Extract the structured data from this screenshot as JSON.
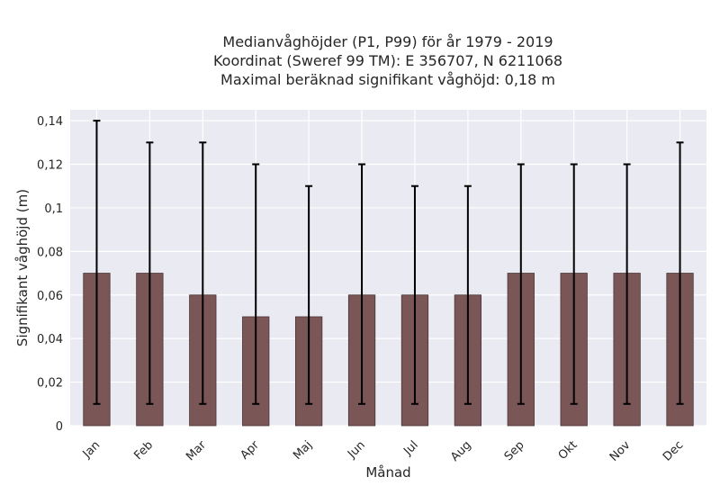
{
  "chart_data": {
    "type": "bar",
    "title_lines": [
      "Medianvåghöjder (P1, P99) för år 1979 - 2019",
      "Koordinat (Sweref 99 TM): E 356707, N 6211068",
      "Maximal beräknad signifikant våghöjd: 0,18 m"
    ],
    "xlabel": "Månad",
    "ylabel": "Signifikant våghöjd (m)",
    "categories": [
      "Jan",
      "Feb",
      "Mar",
      "Apr",
      "Maj",
      "Jun",
      "Jul",
      "Aug",
      "Sep",
      "Okt",
      "Nov",
      "Dec"
    ],
    "values": [
      0.07,
      0.07,
      0.06,
      0.05,
      0.05,
      0.06,
      0.06,
      0.06,
      0.07,
      0.07,
      0.07,
      0.07
    ],
    "err_low": [
      0.01,
      0.01,
      0.01,
      0.01,
      0.01,
      0.01,
      0.01,
      0.01,
      0.01,
      0.01,
      0.01,
      0.01
    ],
    "err_high": [
      0.14,
      0.13,
      0.13,
      0.12,
      0.11,
      0.12,
      0.11,
      0.11,
      0.12,
      0.12,
      0.12,
      0.13
    ],
    "ylim": [
      0,
      0.145
    ],
    "yticks": [
      0,
      0.02,
      0.04,
      0.06,
      0.08,
      0.1,
      0.12,
      0.14
    ],
    "ytick_labels": [
      "0",
      "0,02",
      "0,04",
      "0,06",
      "0,08",
      "0,1",
      "0,12",
      "0,14"
    ],
    "grid": true,
    "colors": {
      "bar": "#7a5656",
      "bar_edge": "#4a3434",
      "error": "#000000",
      "plot_bg": "#eaeaf2",
      "grid": "#ffffff"
    }
  }
}
